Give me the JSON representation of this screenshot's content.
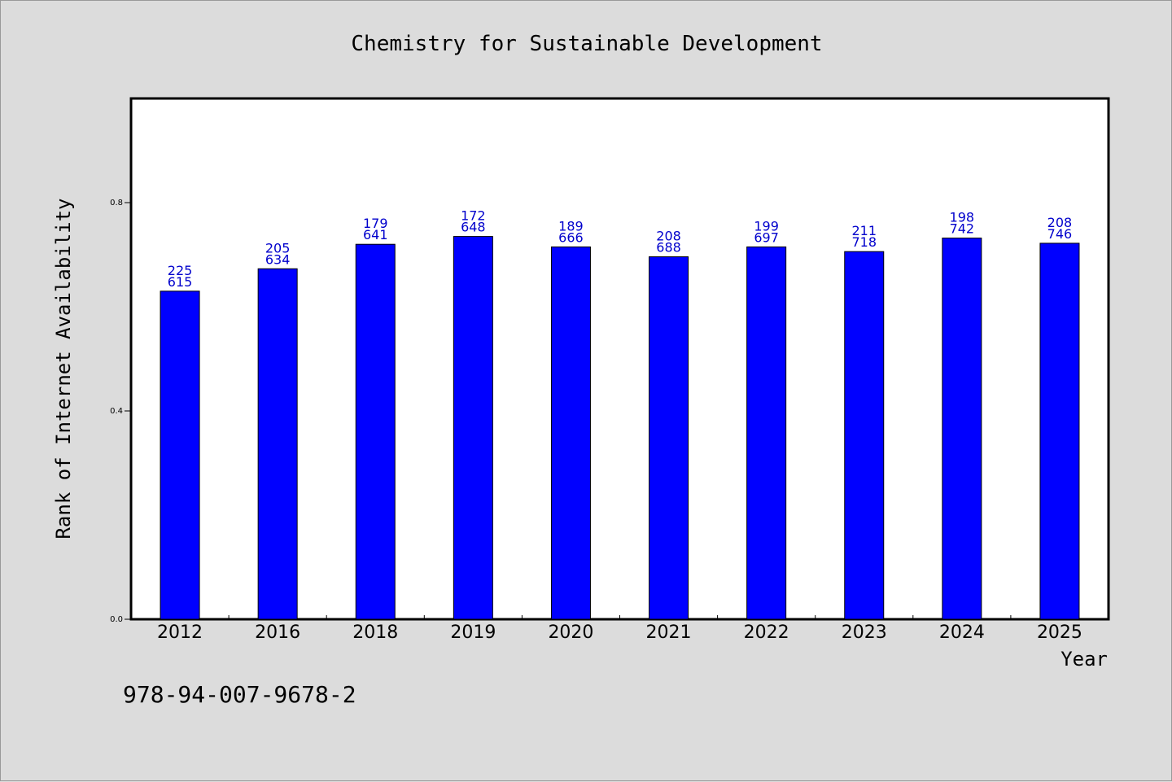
{
  "chart_data": {
    "type": "bar",
    "title": "Chemistry for Sustainable Development",
    "xlabel": "Year",
    "ylabel": "Rank of Internet Availability",
    "categories": [
      "2012",
      "2016",
      "2018",
      "2019",
      "2020",
      "2021",
      "2022",
      "2023",
      "2024",
      "2025"
    ],
    "values": [
      0.63,
      0.673,
      0.72,
      0.735,
      0.715,
      0.696,
      0.715,
      0.706,
      0.732,
      0.722
    ],
    "data_labels": [
      [
        "225",
        "615"
      ],
      [
        "205",
        "634"
      ],
      [
        "179",
        "641"
      ],
      [
        "172",
        "648"
      ],
      [
        "189",
        "666"
      ],
      [
        "208",
        "688"
      ],
      [
        "199",
        "697"
      ],
      [
        "211",
        "718"
      ],
      [
        "198",
        "742"
      ],
      [
        "208",
        "746"
      ]
    ],
    "yticks": [
      "0.0",
      "0.4",
      "0.8"
    ],
    "ylim": [
      0,
      1.0
    ],
    "grid": false,
    "bar_color": "#0000ff",
    "label_color": "#0000cc",
    "plot_background": "#ffffff",
    "page_background": "#dcdcdc"
  },
  "footer": {
    "isbn": "978-94-007-9678-2"
  }
}
